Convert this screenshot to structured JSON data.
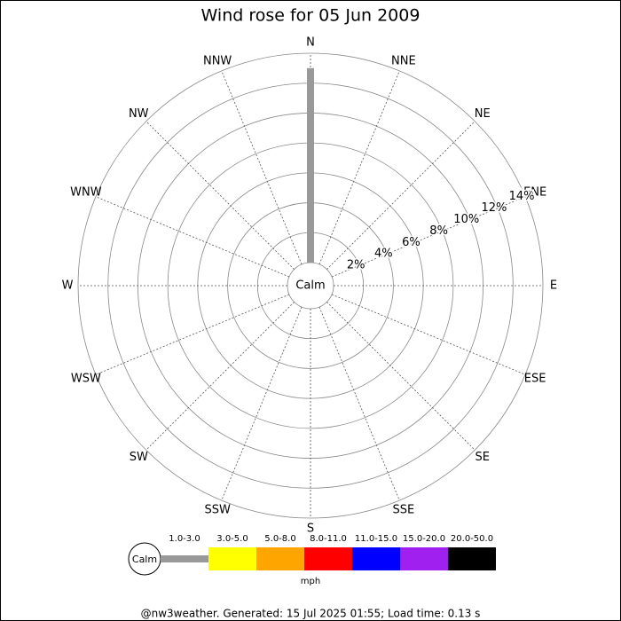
{
  "chart_data": {
    "type": "windrose",
    "title": "Wind rose for 05 Jun 2009",
    "categories": [
      "N",
      "NNE",
      "NE",
      "ENE",
      "E",
      "ESE",
      "SE",
      "SSE",
      "S",
      "SSW",
      "SW",
      "WSW",
      "W",
      "WNW",
      "NW",
      "NNW"
    ],
    "series": [
      {
        "name": "1.0-3.0",
        "color": "#999999",
        "values": [
          13,
          0,
          0,
          0,
          0,
          0,
          0,
          0,
          0,
          0,
          0,
          0,
          0,
          0,
          0,
          0
        ]
      },
      {
        "name": "3.0-5.0",
        "color": "#ffff00",
        "values": [
          0,
          0,
          0,
          0,
          0,
          0,
          0,
          0,
          0,
          0,
          0,
          0,
          0,
          0,
          0,
          0
        ]
      },
      {
        "name": "5.0-8.0",
        "color": "#ffa500",
        "values": [
          0,
          0,
          0,
          0,
          0,
          0,
          0,
          0,
          0,
          0,
          0,
          0,
          0,
          0,
          0,
          0
        ]
      },
      {
        "name": "8.0-11.0",
        "color": "#ff0000",
        "values": [
          0,
          0,
          0,
          0,
          0,
          0,
          0,
          0,
          0,
          0,
          0,
          0,
          0,
          0,
          0,
          0
        ]
      },
      {
        "name": "11.0-15.0",
        "color": "#0000ff",
        "values": [
          0,
          0,
          0,
          0,
          0,
          0,
          0,
          0,
          0,
          0,
          0,
          0,
          0,
          0,
          0,
          0
        ]
      },
      {
        "name": "15.0-20.0",
        "color": "#a020f0",
        "values": [
          0,
          0,
          0,
          0,
          0,
          0,
          0,
          0,
          0,
          0,
          0,
          0,
          0,
          0,
          0,
          0
        ]
      },
      {
        "name": "20.0-50.0",
        "color": "#000000",
        "values": [
          0,
          0,
          0,
          0,
          0,
          0,
          0,
          0,
          0,
          0,
          0,
          0,
          0,
          0,
          0,
          0
        ]
      }
    ],
    "rlim": [
      0,
      14
    ],
    "rticks": [
      {
        "value": 2,
        "label": "2%"
      },
      {
        "value": 4,
        "label": "4%"
      },
      {
        "value": 6,
        "label": "6%"
      },
      {
        "value": 8,
        "label": "8%"
      },
      {
        "value": 10,
        "label": "10%"
      },
      {
        "value": 12,
        "label": "12%"
      },
      {
        "value": 14,
        "label": "14%"
      }
    ],
    "calm_label": "Calm",
    "unit_label": "mph",
    "footer": "@nw3weather. Generated: 15 Jul 2025 01:55; Load time: 0.13 s"
  }
}
